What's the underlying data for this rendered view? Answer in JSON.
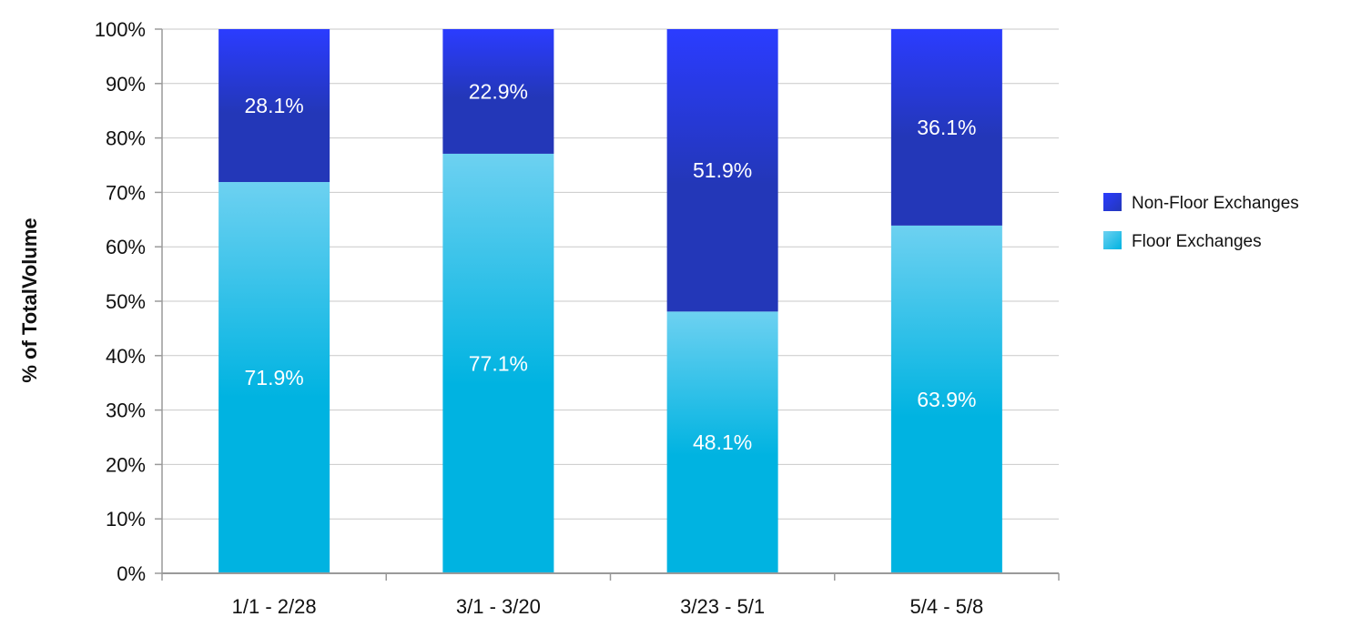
{
  "chart_data": {
    "type": "bar",
    "stacked": true,
    "title": "",
    "xlabel": "",
    "ylabel": "% of TotalVolume",
    "ylim": [
      0,
      100
    ],
    "yticks": [
      "0%",
      "10%",
      "20%",
      "30%",
      "40%",
      "50%",
      "60%",
      "70%",
      "80%",
      "90%",
      "100%"
    ],
    "grid": true,
    "legend_position": "right",
    "categories": [
      "1/1 - 2/28",
      "3/1 - 3/20",
      "3/23 - 5/1",
      "5/4 - 5/8"
    ],
    "series": [
      {
        "name": "Floor Exchanges",
        "values": [
          71.9,
          77.1,
          48.1,
          63.9
        ],
        "labels": [
          "71.9%",
          "77.1%",
          "48.1%",
          "63.9%"
        ],
        "color_top": "#6dd1f1",
        "color_bottom": "#00b3e1"
      },
      {
        "name": "Non-Floor Exchanges",
        "values": [
          28.1,
          22.9,
          51.9,
          36.1
        ],
        "labels": [
          "28.1%",
          "22.9%",
          "51.9%",
          "36.1%"
        ],
        "color_top": "#2b3cff",
        "color_bottom": "#2337b8"
      }
    ],
    "legend_order": [
      "Non-Floor Exchanges",
      "Floor Exchanges"
    ]
  }
}
